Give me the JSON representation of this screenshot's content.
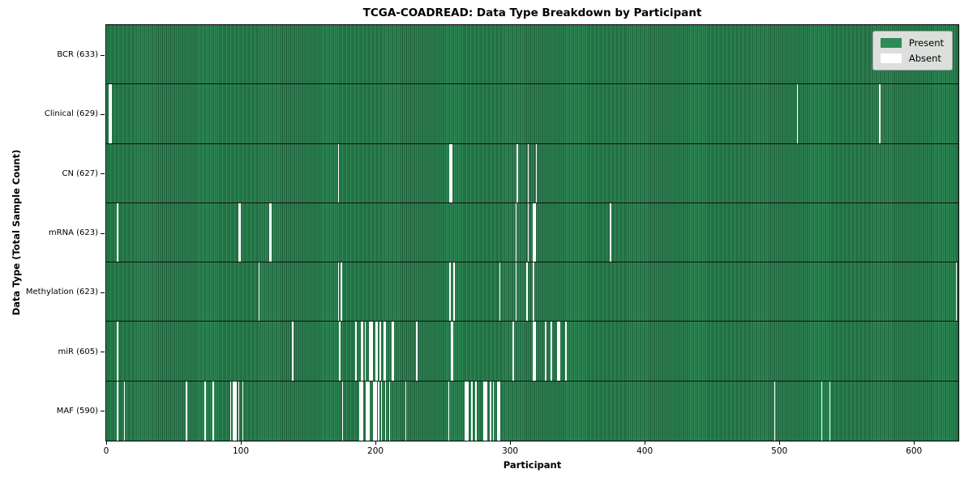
{
  "title": "TCGA-COADREAD: Data Type Breakdown by Participant",
  "xlabel": "Participant",
  "ylabel": "Data Type (Total Sample Count)",
  "legend": {
    "present_label": "Present",
    "absent_label": "Absent",
    "position": "upper right"
  },
  "colors": {
    "present": "#2e8b57",
    "present_edge": "#1c5434",
    "absent": "#ffffff",
    "legend_bg": "#dcdfdc",
    "axis": "#000000"
  },
  "chart_data": {
    "type": "heatmap",
    "title": "TCGA-COADREAD: Data Type Breakdown by Participant",
    "xlabel": "Participant",
    "ylabel": "Data Type (Total Sample Count)",
    "xlim": [
      0,
      633
    ],
    "x_ticks": [
      0,
      100,
      200,
      300,
      400,
      500,
      600
    ],
    "total_participants": 633,
    "grid": false,
    "legend_position": "upper right",
    "rows": [
      {
        "label": "BCR (633)",
        "data_type": "BCR",
        "present_count": 633,
        "absent_participants": []
      },
      {
        "label": "Clinical (629)",
        "data_type": "Clinical",
        "present_count": 629,
        "absent_participants": [
          2,
          3,
          513,
          574
        ]
      },
      {
        "label": "CN (627)",
        "data_type": "CN",
        "present_count": 627,
        "absent_participants": [
          172,
          255,
          256,
          305,
          313,
          319
        ]
      },
      {
        "label": "mRNA (623)",
        "data_type": "mRNA",
        "present_count": 623,
        "absent_participants": [
          8,
          98,
          99,
          121,
          122,
          304,
          313,
          317,
          318,
          374
        ]
      },
      {
        "label": "Methylation (623)",
        "data_type": "Methylation",
        "present_count": 623,
        "absent_participants": [
          113,
          172,
          174,
          255,
          258,
          292,
          304,
          312,
          317,
          631
        ]
      },
      {
        "label": "miR (605)",
        "data_type": "miR",
        "present_count": 605,
        "absent_participants": [
          8,
          138,
          173,
          185,
          189,
          190,
          192,
          195,
          196,
          197,
          200,
          201,
          203,
          206,
          207,
          212,
          213,
          230,
          256,
          257,
          302,
          317,
          318,
          326,
          330,
          335,
          336,
          341
        ]
      },
      {
        "label": "MAF (590)",
        "data_type": "MAF",
        "present_count": 590,
        "absent_participants": [
          8,
          13,
          59,
          73,
          79,
          92,
          94,
          95,
          96,
          98,
          101,
          175,
          188,
          189,
          190,
          193,
          194,
          195,
          198,
          199,
          200,
          202,
          204,
          207,
          210,
          222,
          254,
          266,
          267,
          268,
          271,
          274,
          280,
          281,
          282,
          285,
          287,
          290,
          291,
          292,
          496,
          531,
          537
        ]
      }
    ]
  }
}
